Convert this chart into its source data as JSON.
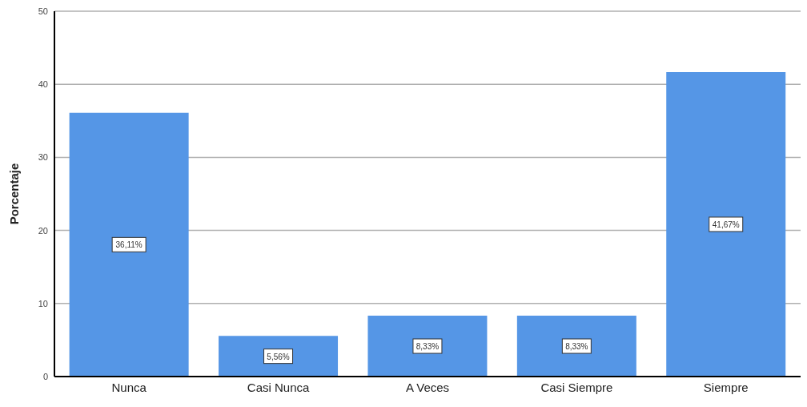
{
  "chart_data": {
    "type": "bar",
    "ylabel": "Porcentaje",
    "categories": [
      "Nunca",
      "Casi Nunca",
      "A Veces",
      "Casi Siempre",
      "Siempre"
    ],
    "values": [
      36.11,
      5.56,
      8.33,
      8.33,
      41.67
    ],
    "value_labels": [
      "36,11%",
      "5,56%",
      "8,33%",
      "8,33%",
      "41,67%"
    ],
    "color": "#5596e6",
    "ylim": [
      0,
      50
    ],
    "yticks": [
      0,
      10,
      20,
      30,
      40,
      50
    ],
    "grid": "y"
  }
}
